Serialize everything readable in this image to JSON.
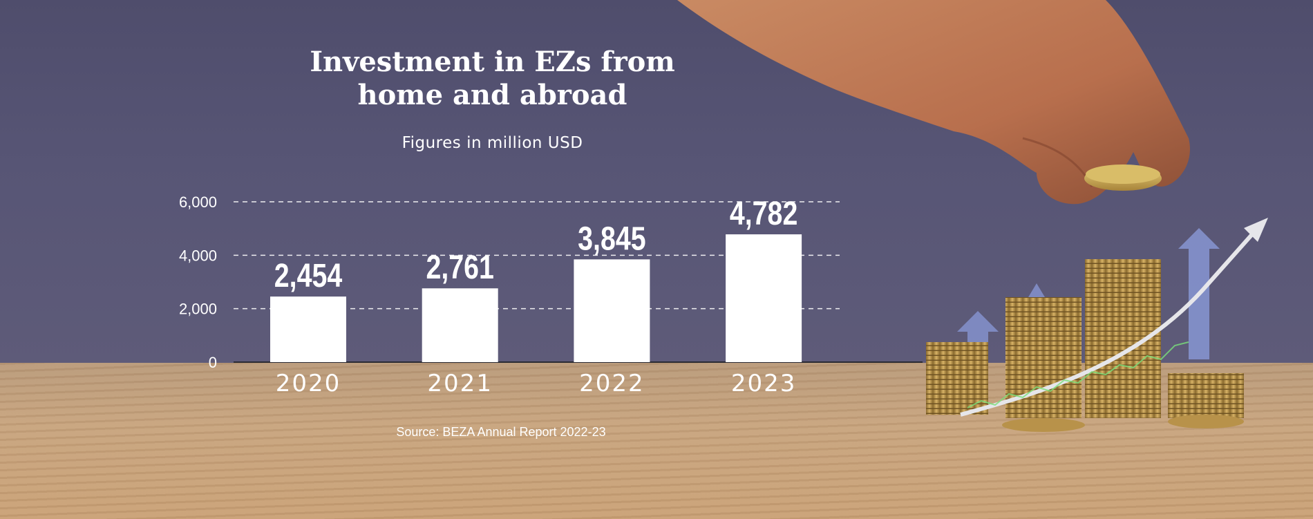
{
  "chart_data": {
    "type": "bar",
    "title": "Investment in EZs from\nhome and abroad",
    "subtitle": "Figures in million USD",
    "categories": [
      "2020",
      "2021",
      "2022",
      "2023"
    ],
    "values": [
      2454,
      2761,
      3845,
      4782
    ],
    "data_labels": [
      "2,454",
      "2,761",
      "3,845",
      "4,782"
    ],
    "y_ticks": [
      0,
      2000,
      4000,
      6000
    ],
    "y_tick_labels": [
      "0",
      "2,000",
      "4,000",
      "6,000"
    ],
    "ylim": [
      0,
      6000
    ],
    "grid": "dashed horizontal",
    "source": "Source: BEZA Annual Report 2022-23",
    "bar_color": "#ffffff",
    "text_color": "#ffffff"
  }
}
